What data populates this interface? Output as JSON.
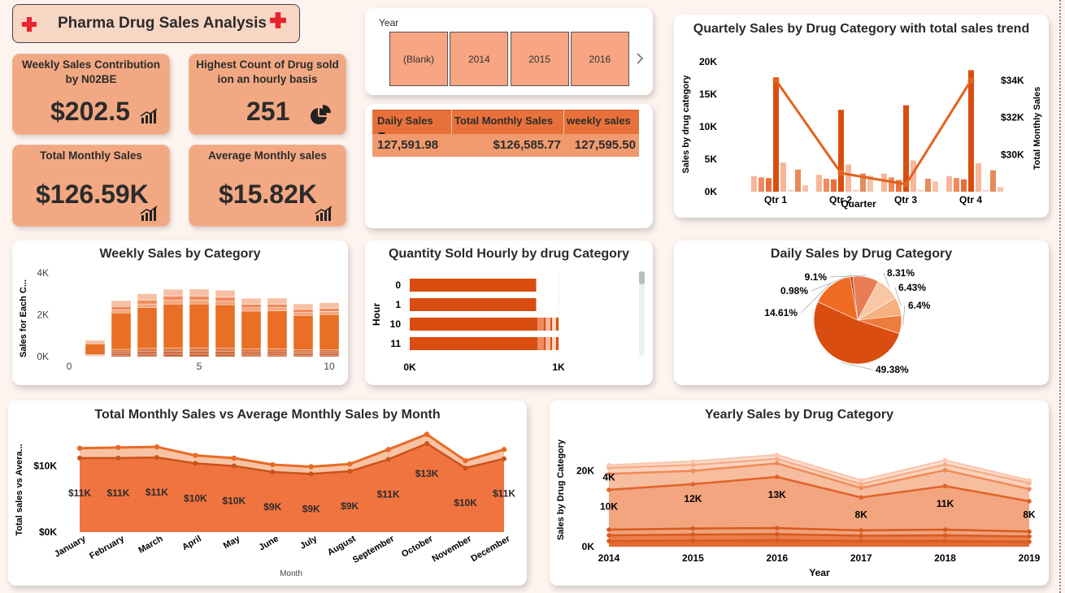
{
  "header": {
    "title": "Pharma Drug Sales Analysis"
  },
  "colors": {
    "accent": "#e2571a",
    "dark": "#c44510",
    "light": "#f6c3a8",
    "kpi_bg": "#f2a983",
    "red_cross": "#e8232e"
  },
  "kpis": [
    {
      "title": "Weekly Sales Contribution by N02BE",
      "value": "$202.5",
      "icon": "bar-chart-icon"
    },
    {
      "title": "Highest Count of Drug sold ion an hourly basis",
      "value": "251",
      "icon": "pie-chart-icon"
    },
    {
      "title": "Total Monthly Sales",
      "value": "$126.59K",
      "icon": "bar-chart-icon"
    },
    {
      "title": "Average Monthly sales",
      "value": "$15.82K",
      "icon": "bar-chart-icon"
    }
  ],
  "year_slicer": {
    "label": "Year",
    "options": [
      "(Blank)",
      "2014",
      "2015",
      "2016"
    ]
  },
  "summary_table": {
    "headers": [
      "Daily Sales",
      "Total Monthly Sales",
      "weekly sales"
    ],
    "row": [
      "127,591.98",
      "$126,585.77",
      "127,595.50"
    ]
  },
  "chart_data": [
    {
      "id": "quarterly",
      "type": "bar",
      "title": "Quartely Sales by Drug Category with total sales trend",
      "xlabel": "Quarter",
      "ylabel": "Sales by drug category",
      "y2label": "Total Monthly Sales",
      "categories": [
        "Qtr 1",
        "Qtr 2",
        "Qtr 3",
        "Qtr 4"
      ],
      "ylim": [
        0,
        20000
      ],
      "yticks": [
        "0K",
        "5K",
        "10K",
        "15K",
        "20K"
      ],
      "y2ticks": [
        "$30K",
        "$32K",
        "$34K"
      ],
      "series": [
        {
          "values": [
            2400,
            2600,
            2800,
            2400
          ]
        },
        {
          "values": [
            2200,
            2000,
            2200,
            2100
          ]
        },
        {
          "values": [
            2100,
            1900,
            1800,
            1900
          ]
        },
        {
          "values": [
            17600,
            12600,
            13300,
            18700
          ]
        },
        {
          "values": [
            4500,
            4200,
            4800,
            4400
          ]
        },
        {
          "values": [
            300,
            300,
            300,
            300
          ]
        },
        {
          "values": [
            3400,
            2800,
            2000,
            3300
          ]
        },
        {
          "values": [
            1000,
            2500,
            1600,
            700
          ]
        }
      ],
      "line": {
        "values": [
          34000,
          29000,
          28400,
          34000
        ],
        "ylim": [
          28000,
          35000
        ]
      }
    },
    {
      "id": "weekly",
      "type": "bar",
      "title": "Weekly Sales by Category",
      "ylabel": "Sales for Each C...",
      "x": [
        1,
        2,
        3,
        4,
        5,
        6,
        7,
        8,
        9,
        10
      ],
      "xticks": [
        "0",
        "5",
        "10"
      ],
      "yticks": [
        "0K",
        "2K",
        "4K"
      ],
      "ylim": [
        0,
        4000
      ],
      "totals": [
        820,
        2800,
        3150,
        3370,
        3380,
        3320,
        2920,
        2930,
        2640,
        2700
      ]
    },
    {
      "id": "hourly",
      "type": "bar",
      "title": "Quantity Sold Hourly by drug Category",
      "ylabel": "Hour",
      "categories": [
        "0",
        "1",
        "10",
        "11"
      ],
      "values": [
        850,
        850,
        1000,
        1000
      ],
      "xticks": [
        "0K",
        "1K"
      ],
      "xlim": [
        0,
        1000
      ]
    },
    {
      "id": "daily-pie",
      "type": "pie",
      "title": "Daily Sales by Drug Category",
      "labels": [
        "49.38%",
        "14.61%",
        "0.98%",
        "9.1%",
        "8.31%",
        "6.43%",
        "6.4%"
      ],
      "values": [
        49.38,
        14.61,
        0.98,
        9.1,
        8.31,
        6.43,
        6.4
      ]
    },
    {
      "id": "monthly",
      "type": "area",
      "title": "Total Monthly Sales vs Average Monthly Sales by Month",
      "xlabel": "Month",
      "ylabel": "Total sales vs Avera...",
      "categories": [
        "January",
        "February",
        "March",
        "April",
        "May",
        "June",
        "July",
        "August",
        "September",
        "October",
        "November",
        "December"
      ],
      "labels": [
        "$11K",
        "$11K",
        "$11K",
        "$10K",
        "$10K",
        "$9K",
        "$9K",
        "$9K",
        "$11K",
        "$13K",
        "$10K",
        "$11K"
      ],
      "values": [
        11200,
        11200,
        11300,
        10400,
        10000,
        9100,
        8800,
        9200,
        11000,
        13400,
        9700,
        11100
      ],
      "upper": [
        12700,
        12800,
        12900,
        11600,
        11200,
        10200,
        9900,
        10300,
        12500,
        14800,
        10800,
        12500
      ],
      "yticks": [
        "$0K",
        "$10K"
      ],
      "ylim": [
        0,
        15000
      ]
    },
    {
      "id": "yearly",
      "type": "area",
      "title": "Yearly Sales by Drug Category",
      "xlabel": "Year",
      "ylabel": "Sales by Drug Category",
      "categories": [
        "2014",
        "2015",
        "2016",
        "2017",
        "2018",
        "2019"
      ],
      "yticks": [
        "0K",
        "20K"
      ],
      "ylim": [
        0,
        30000
      ],
      "series": [
        {
          "values": [
            1500,
            1600,
            1700,
            1500,
            1500,
            1300
          ]
        },
        {
          "values": [
            3000,
            3200,
            3300,
            2900,
            3000,
            2700
          ]
        },
        {
          "values": [
            4500,
            4800,
            4900,
            4300,
            4500,
            4000
          ]
        },
        {
          "values": [
            15000,
            16500,
            18400,
            13000,
            16000,
            12000
          ]
        },
        {
          "values": [
            19200,
            20000,
            22000,
            15500,
            20200,
            15200
          ]
        },
        {
          "values": [
            20800,
            21600,
            23200,
            16500,
            21700,
            16800
          ]
        },
        {
          "values": [
            21500,
            22500,
            24200,
            17500,
            22800,
            17500
          ]
        }
      ],
      "data_labels": [
        {
          "text": "10K",
          "x": 0,
          "y": 9800
        },
        {
          "text": "12K",
          "x": 1,
          "y": 11800
        },
        {
          "text": "13K",
          "x": 2,
          "y": 12900
        },
        {
          "text": "8K",
          "x": 3,
          "y": 7600
        },
        {
          "text": "11K",
          "x": 4,
          "y": 10500
        },
        {
          "text": "8K",
          "x": 5,
          "y": 7600
        },
        {
          "text": "4K",
          "x": 0,
          "y": 17500
        }
      ]
    }
  ]
}
